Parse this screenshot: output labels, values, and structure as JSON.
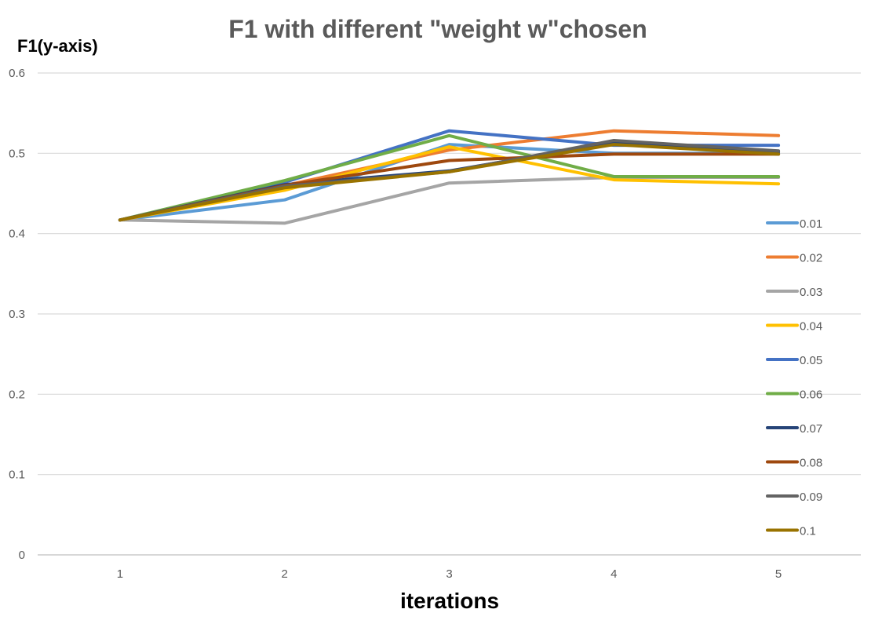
{
  "chart_data": {
    "type": "line",
    "title": "F1 with different \"weight w\"chosen",
    "ylabel": "F1(y-axis)",
    "xlabel": "iterations",
    "x": [
      1,
      2,
      3,
      4,
      5
    ],
    "x_tick_labels": [
      "1",
      "2",
      "3",
      "4",
      "5"
    ],
    "y_tick_labels": [
      "0",
      "0.1",
      "0.2",
      "0.3",
      "0.4",
      "0.5",
      "0.6"
    ],
    "ylim": [
      0,
      0.6
    ],
    "grid": true,
    "legend_position": "right",
    "series": [
      {
        "name": "0.01",
        "color": "#5b9bd5",
        "values": [
          0.417,
          0.442,
          0.511,
          0.5,
          0.5
        ]
      },
      {
        "name": "0.02",
        "color": "#ed7d31",
        "values": [
          0.417,
          0.46,
          0.504,
          0.528,
          0.522
        ]
      },
      {
        "name": "0.03",
        "color": "#a5a5a5",
        "values": [
          0.417,
          0.413,
          0.463,
          0.47,
          0.47
        ]
      },
      {
        "name": "0.04",
        "color": "#ffc000",
        "values": [
          0.417,
          0.454,
          0.508,
          0.467,
          0.462
        ]
      },
      {
        "name": "0.05",
        "color": "#4472c4",
        "values": [
          0.417,
          0.464,
          0.528,
          0.51,
          0.51
        ]
      },
      {
        "name": "0.06",
        "color": "#70ad47",
        "values": [
          0.417,
          0.466,
          0.522,
          0.471,
          0.471
        ]
      },
      {
        "name": "0.07",
        "color": "#264478",
        "values": [
          0.417,
          0.461,
          0.478,
          0.513,
          0.502
        ]
      },
      {
        "name": "0.08",
        "color": "#9e480e",
        "values": [
          0.417,
          0.46,
          0.491,
          0.499,
          0.499
        ]
      },
      {
        "name": "0.09",
        "color": "#636363",
        "values": [
          0.417,
          0.459,
          0.477,
          0.516,
          0.503
        ]
      },
      {
        "name": "0.1",
        "color": "#997300",
        "values": [
          0.417,
          0.457,
          0.477,
          0.511,
          0.499
        ]
      }
    ]
  }
}
